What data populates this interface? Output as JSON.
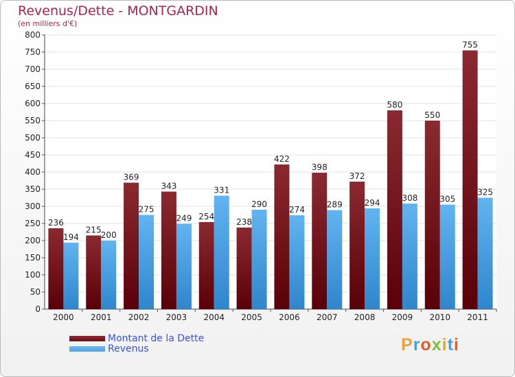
{
  "header": {
    "title": "Revenus/Dette - MONTGARDIN",
    "subtitle": "(en milliers d'€)"
  },
  "legend": {
    "items": [
      {
        "label": "Montant de la Dette",
        "color": "#6b0f16"
      },
      {
        "label": "Revenus",
        "color": "#4fa3e6"
      }
    ]
  },
  "logo": {
    "text": "Proxiti",
    "colors": [
      "#e8a33a",
      "#4aa0d8",
      "#e45c2c",
      "#7cbf3f",
      "#e8a33a",
      "#4aa0d8",
      "#e45c2c"
    ]
  },
  "chart_data": {
    "type": "bar",
    "title": "Revenus/Dette - MONTGARDIN",
    "subtitle": "(en milliers d'€)",
    "categories": [
      "2000",
      "2001",
      "2002",
      "2003",
      "2004",
      "2005",
      "2006",
      "2007",
      "2008",
      "2009",
      "2010",
      "2011"
    ],
    "series": [
      {
        "name": "Montant de la Dette",
        "color": "#7a1a22",
        "values": [
          236,
          215,
          369,
          343,
          254,
          238,
          422,
          398,
          372,
          580,
          550,
          755
        ]
      },
      {
        "name": "Revenus",
        "color": "#4fa3e6",
        "values": [
          194,
          200,
          275,
          249,
          331,
          290,
          274,
          289,
          294,
          308,
          305,
          325
        ]
      }
    ],
    "ylim": [
      0,
      800
    ],
    "yticks": [
      0,
      50,
      100,
      150,
      200,
      250,
      300,
      350,
      400,
      450,
      500,
      550,
      600,
      650,
      700,
      750,
      800
    ],
    "grid": true,
    "legend": "bottom-left"
  }
}
